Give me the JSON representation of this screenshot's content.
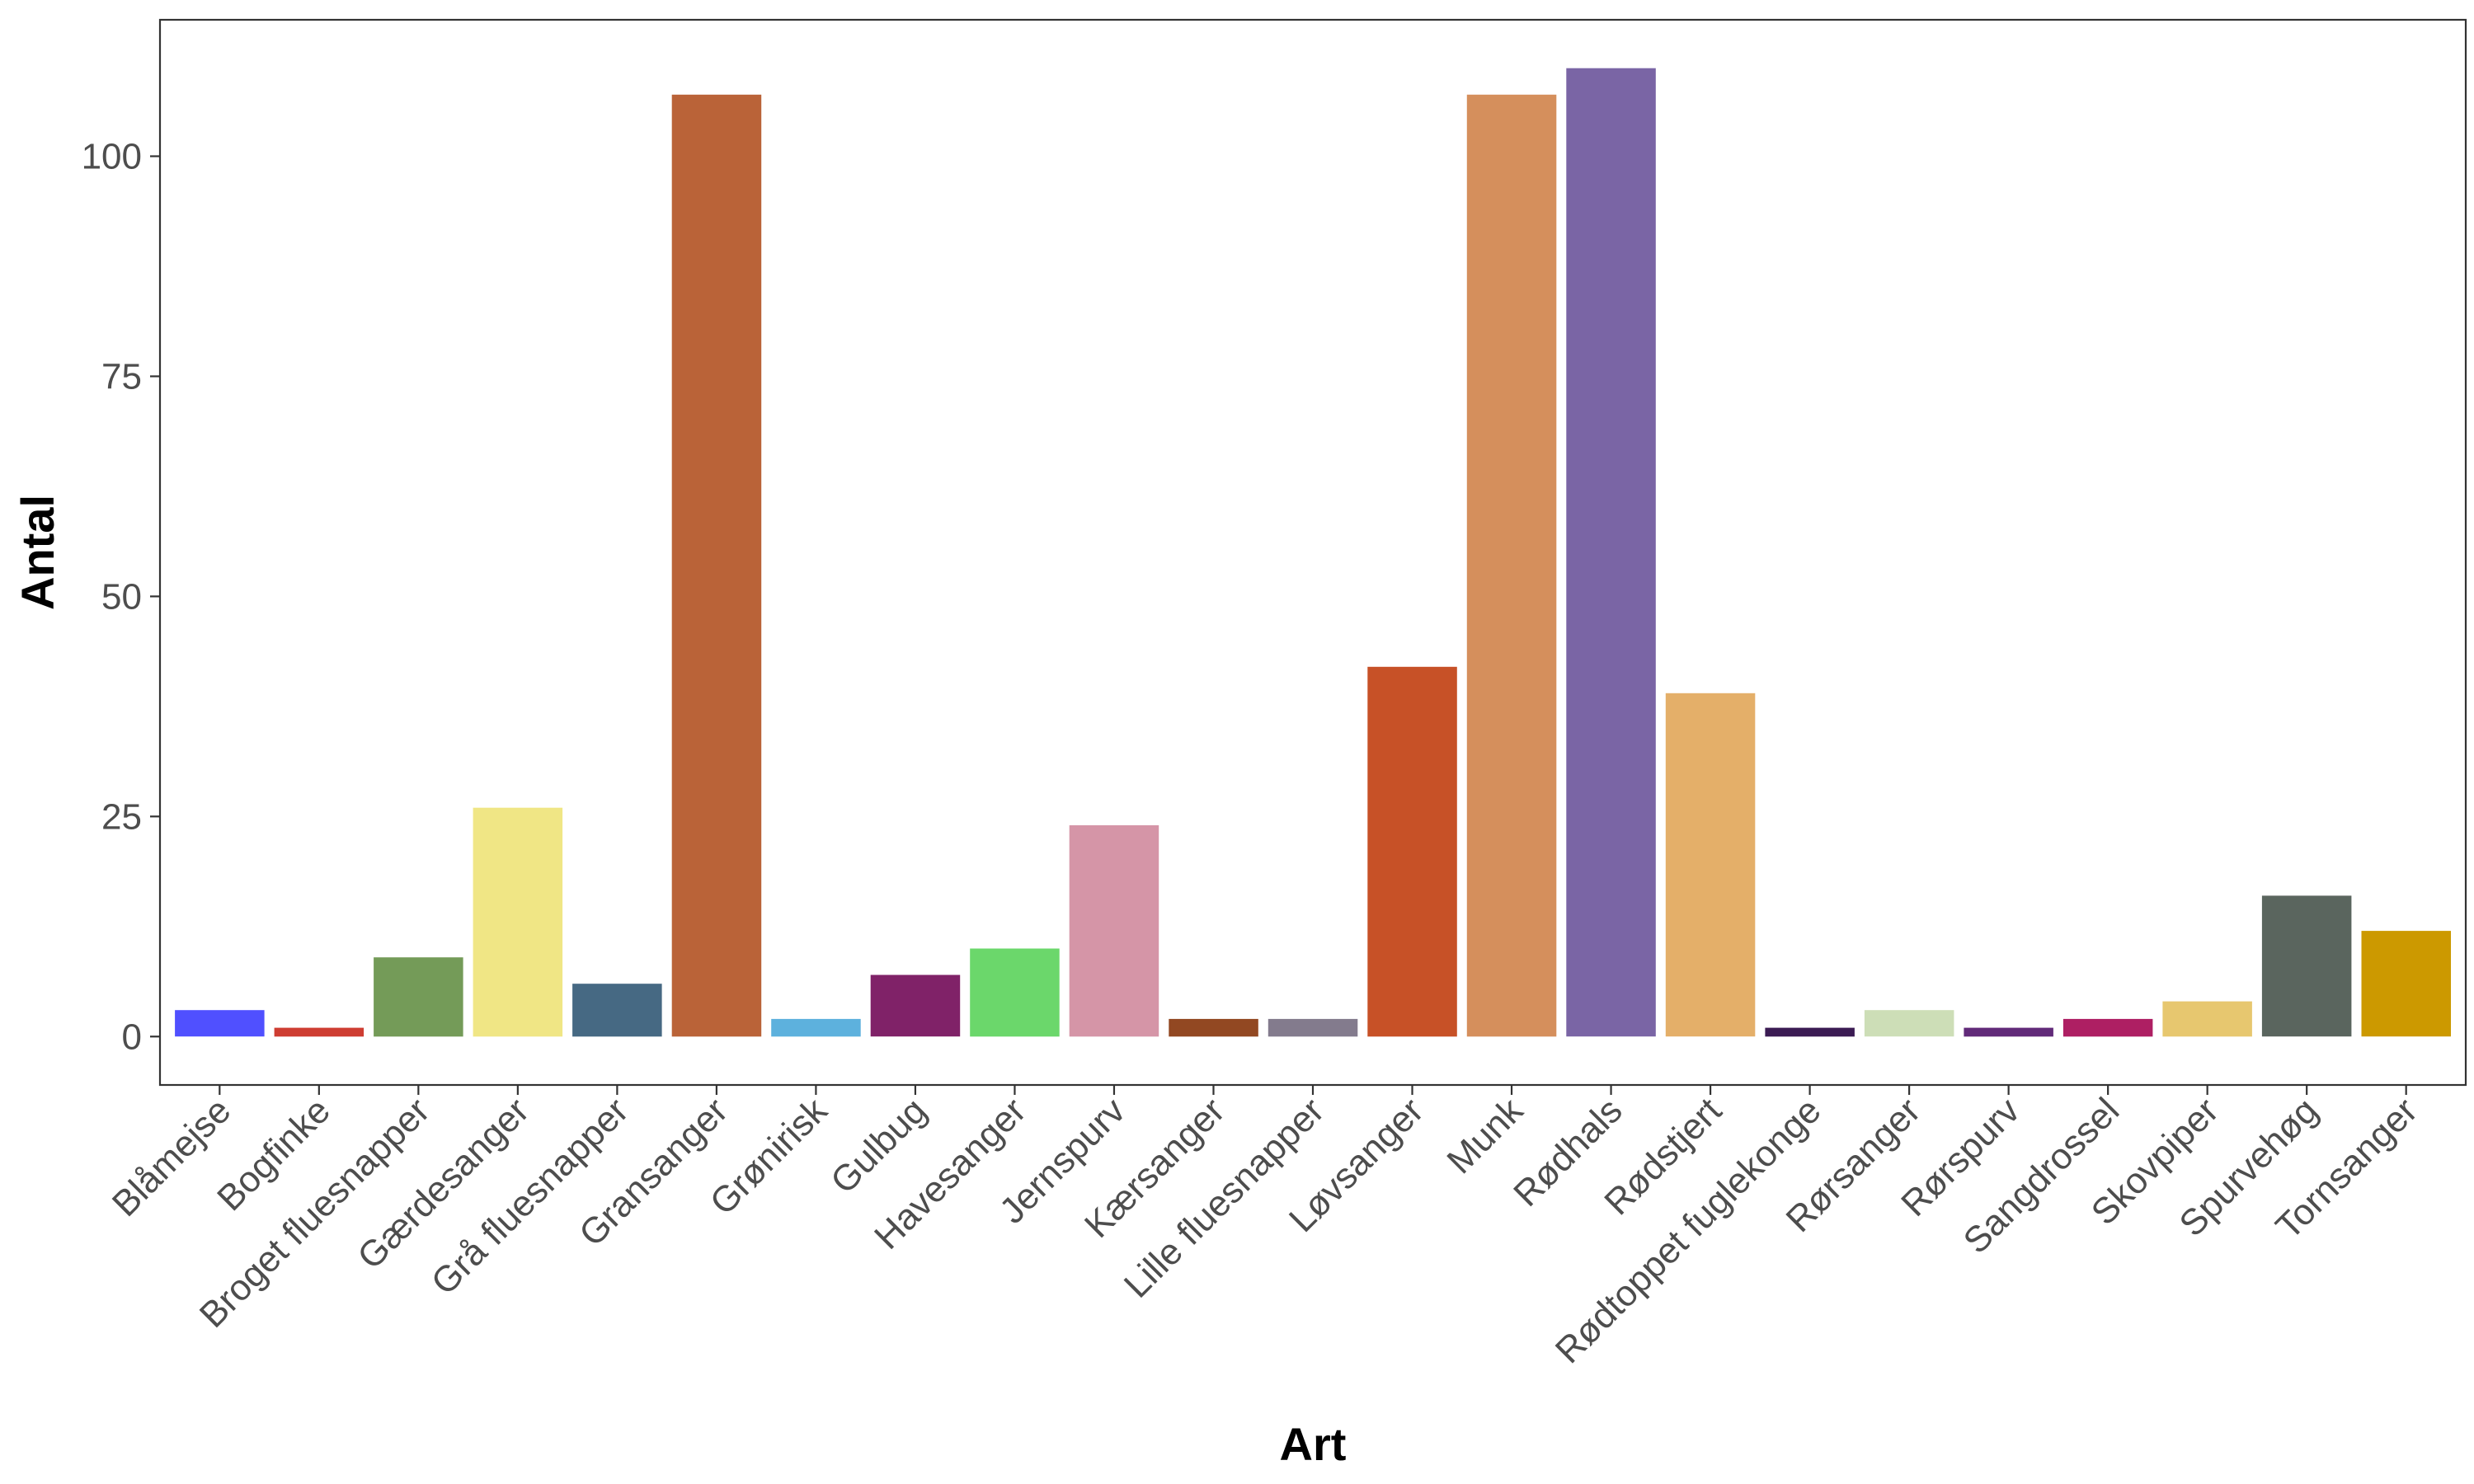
{
  "chart_data": {
    "type": "bar",
    "title": "",
    "xlabel": "Art",
    "ylabel": "Antal",
    "ylim": [
      -5.5,
      115.5
    ],
    "yticks": [
      0,
      25,
      50,
      75,
      100
    ],
    "grid": false,
    "legend": "none",
    "categories": [
      "Blåmejse",
      "Bogfinke",
      "Broget fluesnapper",
      "Gærdesanger",
      "Grå fluesnapper",
      "Gransanger",
      "Grønirisk",
      "Gulbug",
      "Havesanger",
      "Jernspurv",
      "Kærsanger",
      "Lille fluesnapper",
      "Løvsanger",
      "Munk",
      "Rødhals",
      "Rødstjert",
      "Rødtoppet fuglekonge",
      "Rørsanger",
      "Rørspurv",
      "Sangdrossel",
      "Skovpiper",
      "Spurvehøg",
      "Tornsanger"
    ],
    "values": [
      3,
      1,
      9,
      26,
      6,
      107,
      2,
      7,
      10,
      24,
      2,
      2,
      42,
      107,
      110,
      39,
      1,
      3,
      1,
      2,
      4,
      16,
      12
    ],
    "colors": [
      "#5050ff",
      "#ce3d32",
      "#749b58",
      "#f0e685",
      "#466983",
      "#ba6338",
      "#5db1dd",
      "#802268",
      "#6bd76b",
      "#d595a7",
      "#924822",
      "#837b8d",
      "#c75127",
      "#d58f5c",
      "#7a65a5",
      "#e4af69",
      "#3b1b53",
      "#cddeb7",
      "#612a79",
      "#ae1f63",
      "#e7c76f",
      "#5a655e",
      "#cc9900"
    ]
  }
}
